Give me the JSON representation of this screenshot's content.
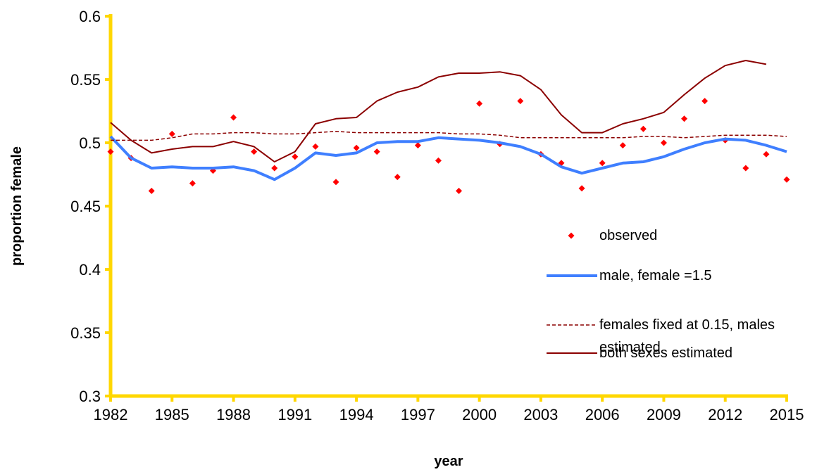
{
  "chart_data": {
    "type": "line",
    "x_label": "year",
    "y_label": "proportion female",
    "x": [
      1982,
      1983,
      1984,
      1985,
      1986,
      1987,
      1988,
      1989,
      1990,
      1991,
      1992,
      1993,
      1994,
      1995,
      1996,
      1997,
      1998,
      1999,
      2000,
      2001,
      2002,
      2003,
      2004,
      2005,
      2006,
      2007,
      2008,
      2009,
      2010,
      2011,
      2012,
      2013,
      2014,
      2015
    ],
    "xlim": [
      1982,
      2015
    ],
    "xticks": [
      1982,
      1985,
      1988,
      1991,
      1994,
      1997,
      2000,
      2003,
      2006,
      2009,
      2012,
      2015
    ],
    "ylim": [
      0.3,
      0.6
    ],
    "yticks": [
      0.3,
      0.35,
      0.4,
      0.45,
      0.5,
      0.55,
      0.6
    ],
    "axis_color": "#ffd700",
    "series": [
      {
        "name": "observed",
        "color": "#ff0000",
        "mode": "markers",
        "values": [
          0.493,
          0.488,
          0.462,
          0.507,
          0.468,
          0.478,
          0.52,
          0.493,
          0.48,
          0.489,
          0.497,
          0.469,
          0.496,
          0.493,
          0.473,
          0.498,
          0.486,
          0.462,
          0.531,
          0.499,
          0.533,
          0.491,
          0.484,
          0.464,
          0.484,
          0.498,
          0.511,
          0.5,
          0.519,
          0.533,
          0.502,
          0.48,
          0.491,
          0.471
        ]
      },
      {
        "name": "male, female =1.5",
        "color": "#3f7fff",
        "mode": "lines",
        "width": 4,
        "values": [
          0.505,
          0.488,
          0.48,
          0.481,
          0.48,
          0.48,
          0.481,
          0.478,
          0.471,
          0.48,
          0.492,
          0.49,
          0.492,
          0.5,
          0.501,
          0.501,
          0.504,
          0.503,
          0.502,
          0.5,
          0.497,
          0.491,
          0.481,
          0.476,
          0.48,
          0.484,
          0.485,
          0.489,
          0.495,
          0.5,
          0.503,
          0.502,
          0.498,
          0.493
        ]
      },
      {
        "name": "females fixed at 0.15, males estimated",
        "color": "#8b0000",
        "mode": "lines",
        "dashed": true,
        "width": 1.5,
        "values": [
          0.502,
          0.502,
          0.502,
          0.504,
          0.507,
          0.507,
          0.508,
          0.508,
          0.507,
          0.507,
          0.508,
          0.509,
          0.508,
          0.508,
          0.508,
          0.508,
          0.508,
          0.507,
          0.507,
          0.506,
          0.504,
          0.504,
          0.504,
          0.504,
          0.504,
          0.504,
          0.505,
          0.505,
          0.504,
          0.505,
          0.506,
          0.506,
          0.506,
          0.505
        ]
      },
      {
        "name": "both sexes estimated",
        "color": "#8b0000",
        "mode": "lines",
        "width": 2,
        "values": [
          0.516,
          0.502,
          0.492,
          0.495,
          0.497,
          0.497,
          0.501,
          0.497,
          0.485,
          0.493,
          0.515,
          0.519,
          0.52,
          0.533,
          0.54,
          0.544,
          0.552,
          0.555,
          0.555,
          0.556,
          0.553,
          0.542,
          0.522,
          0.508,
          0.508,
          0.515,
          0.519,
          0.524,
          0.538,
          0.551,
          0.561,
          0.565,
          0.562,
          null
        ]
      }
    ]
  }
}
